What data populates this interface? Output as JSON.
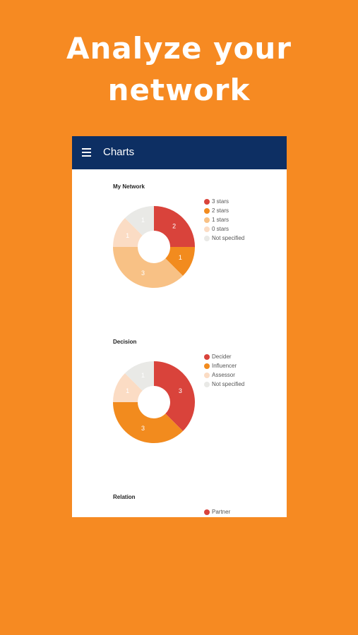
{
  "headline": [
    "Analyze your",
    "network"
  ],
  "app_bar": {
    "title": "Charts"
  },
  "charts": [
    {
      "type": "pie",
      "title": "My Network",
      "categories": [
        "3 stars",
        "2 stars",
        "1 stars",
        "0 stars",
        "Not specified"
      ],
      "values": [
        2,
        1,
        3,
        1,
        1
      ],
      "colors": [
        "#d9433b",
        "#f28b1e",
        "#f8c185",
        "#fbdcc4",
        "#e9e9e6"
      ]
    },
    {
      "type": "pie",
      "title": "Decision",
      "categories": [
        "Decider",
        "Influencer",
        "Assessor",
        "Not specified"
      ],
      "values": [
        3,
        3,
        1,
        1
      ],
      "colors": [
        "#d9433b",
        "#f28b1e",
        "#fbdcc4",
        "#e9e9e6"
      ]
    },
    {
      "type": "pie",
      "title": "Relation",
      "categories": [
        "Partner"
      ],
      "colors": [
        "#d9433b"
      ]
    }
  ]
}
